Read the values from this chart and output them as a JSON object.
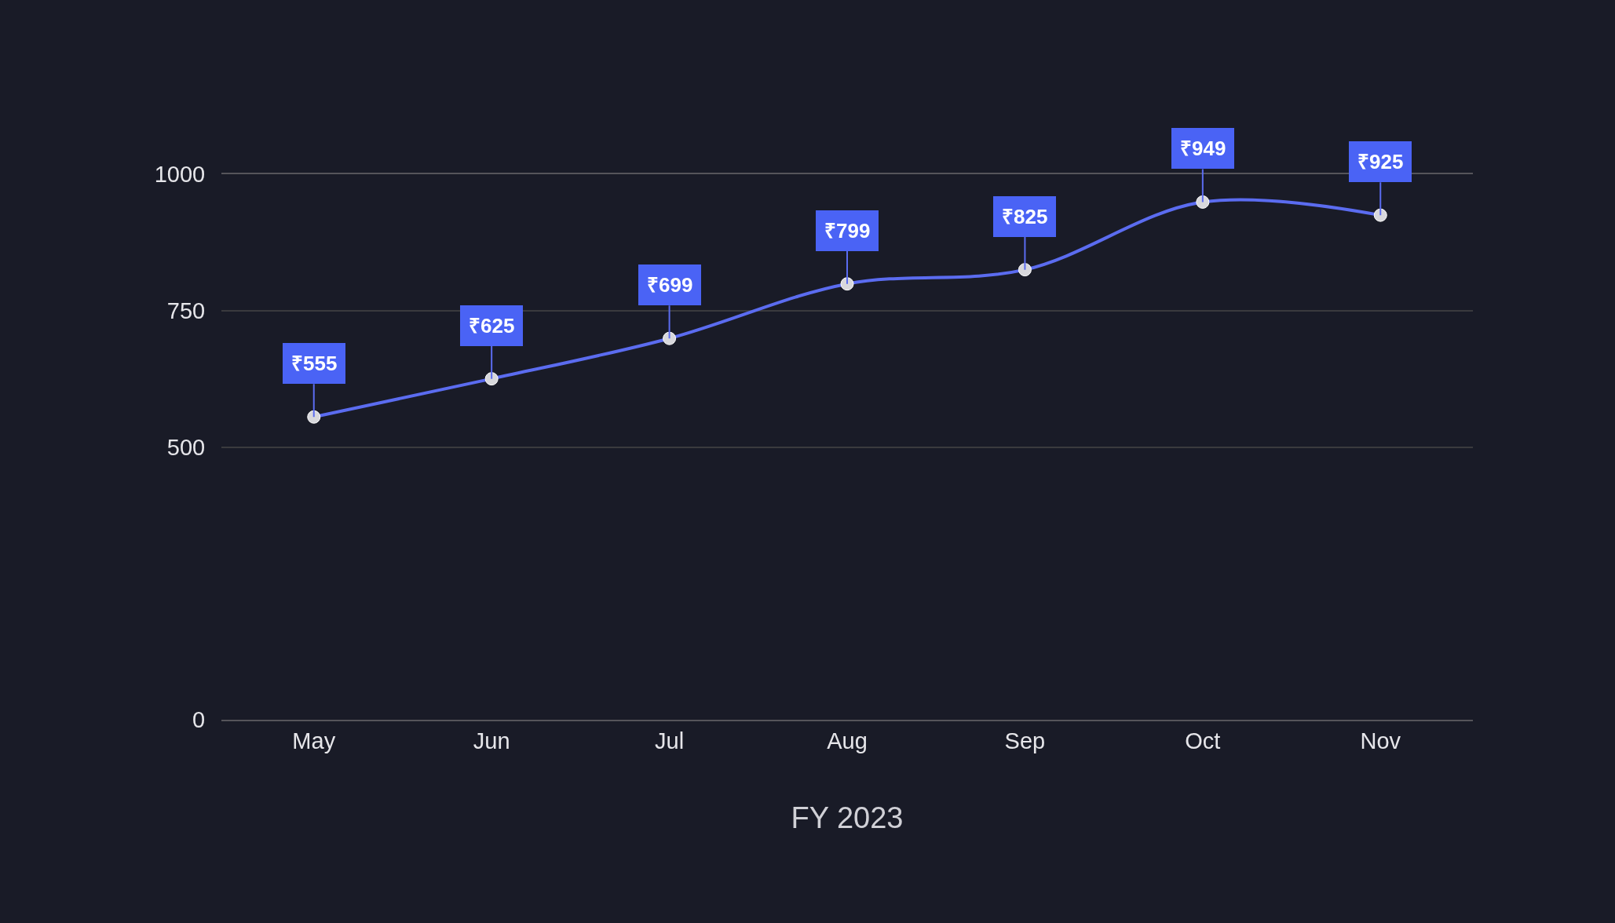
{
  "chart_data": {
    "type": "line",
    "xlabel": "FY 2023",
    "categories": [
      "May",
      "Jun",
      "Jul",
      "Aug",
      "Sep",
      "Oct",
      "Nov"
    ],
    "series": [
      {
        "color": "#5b6cf0",
        "values": [
          555,
          625,
          699,
          799,
          825,
          949,
          925
        ],
        "value_labels": [
          "₹555",
          "₹625",
          "₹699",
          "₹799",
          "₹825",
          "₹949",
          "₹925"
        ]
      }
    ],
    "ylim": [
      0,
      1000
    ],
    "yticks": [
      0,
      500,
      750,
      1000
    ],
    "grid": "y",
    "marker": "circle",
    "line_style": "solid",
    "legend": false
  }
}
